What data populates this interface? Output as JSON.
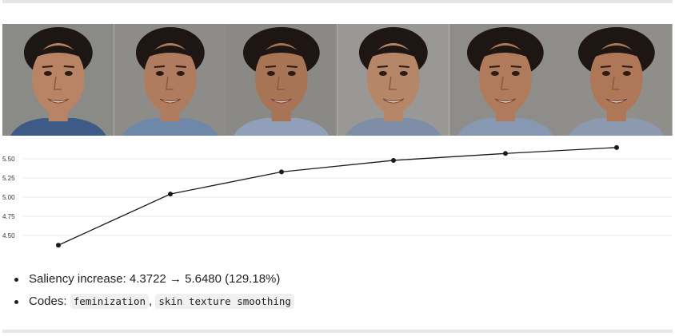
{
  "images": [
    {
      "name": "face-1"
    },
    {
      "name": "face-2"
    },
    {
      "name": "face-3"
    },
    {
      "name": "face-4"
    },
    {
      "name": "face-5"
    },
    {
      "name": "face-6"
    }
  ],
  "chart_data": {
    "type": "line",
    "x": [
      1,
      2,
      3,
      4,
      5,
      6
    ],
    "values": [
      4.3722,
      5.04,
      5.33,
      5.48,
      5.57,
      5.648
    ],
    "yticks": [
      "4.50",
      "4.75",
      "5.00",
      "5.25",
      "5.50"
    ],
    "ylim": [
      4.26,
      5.74
    ],
    "grid": true,
    "line_color": "#1a1a1a",
    "grid_color": "#e8e8e8",
    "title": "",
    "xlabel": "",
    "ylabel": ""
  },
  "summary": {
    "saliency_text": "Saliency increase: 4.3722 → 5.6480 (129.18%)",
    "codes_label": "Codes:",
    "separator": ",",
    "codes": [
      "feminization",
      "skin texture smoothing"
    ]
  }
}
